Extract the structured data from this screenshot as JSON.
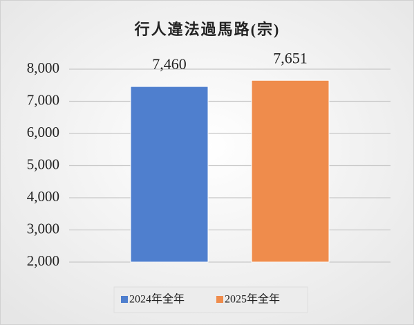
{
  "chart_data": {
    "type": "bar",
    "title": "行人違法過馬路(宗)",
    "categories": [
      null
    ],
    "series": [
      {
        "name": "2024年全年",
        "color": "#4f7fce",
        "values": [
          7460
        ],
        "value_labels": [
          "7,460"
        ]
      },
      {
        "name": "2025年全年",
        "color": "#ef8c4c",
        "values": [
          7651
        ],
        "value_labels": [
          "7,651"
        ]
      }
    ],
    "ylim": [
      2000,
      8000
    ],
    "yticks": [
      {
        "value": 2000,
        "label": "2,000"
      },
      {
        "value": 3000,
        "label": "3,000"
      },
      {
        "value": 4000,
        "label": "4,000"
      },
      {
        "value": 5000,
        "label": "5,000"
      },
      {
        "value": 6000,
        "label": "6,000"
      },
      {
        "value": 7000,
        "label": "7,000"
      },
      {
        "value": 8000,
        "label": "8,000"
      }
    ],
    "grid": true,
    "legend": "bottom"
  }
}
